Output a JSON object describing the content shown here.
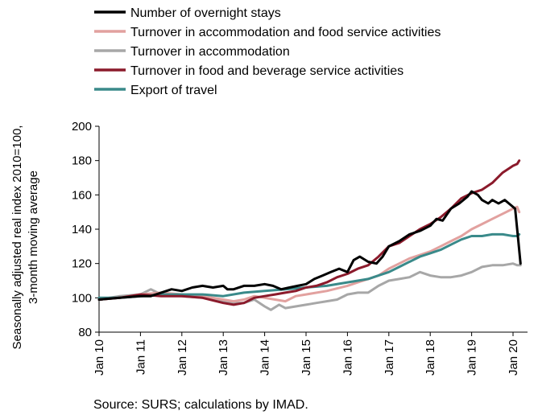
{
  "chart_data": {
    "type": "line",
    "title": "",
    "xlabel": "",
    "ylabel_lines": [
      "Seasonally adjusted real index 2010=100,",
      "3-month moving average"
    ],
    "ylim": [
      80,
      200
    ],
    "yticks": [
      80,
      100,
      120,
      140,
      160,
      180,
      200
    ],
    "grid": false,
    "legend_position": "top",
    "x_range": [
      2010,
      2020.35
    ],
    "x_ticks": [
      {
        "label": "Jan 10",
        "x": 2010
      },
      {
        "label": "Jan 11",
        "x": 2011
      },
      {
        "label": "Jan 12",
        "x": 2012
      },
      {
        "label": "Jan 13",
        "x": 2013
      },
      {
        "label": "Jan 14",
        "x": 2014
      },
      {
        "label": "Jan 15",
        "x": 2015
      },
      {
        "label": "Jan 16",
        "x": 2016
      },
      {
        "label": "Jan 17",
        "x": 2017
      },
      {
        "label": "Jan 18",
        "x": 2018
      },
      {
        "label": "Jan 19",
        "x": 2019
      },
      {
        "label": "Jan 20",
        "x": 2020
      }
    ],
    "series": [
      {
        "name": "Number of overnight stays",
        "color": "#000000",
        "points": [
          [
            2010,
            99
          ],
          [
            2010.5,
            100
          ],
          [
            2011,
            101
          ],
          [
            2011.25,
            101
          ],
          [
            2011.5,
            103
          ],
          [
            2011.75,
            105
          ],
          [
            2012,
            104
          ],
          [
            2012.25,
            106
          ],
          [
            2012.5,
            107
          ],
          [
            2012.75,
            106
          ],
          [
            2013,
            107
          ],
          [
            2013.1,
            105
          ],
          [
            2013.25,
            105
          ],
          [
            2013.5,
            107
          ],
          [
            2013.75,
            107
          ],
          [
            2014,
            108
          ],
          [
            2014.2,
            107
          ],
          [
            2014.4,
            105
          ],
          [
            2014.6,
            106
          ],
          [
            2014.8,
            107
          ],
          [
            2015,
            108
          ],
          [
            2015.2,
            111
          ],
          [
            2015.4,
            113
          ],
          [
            2015.6,
            115
          ],
          [
            2015.8,
            117
          ],
          [
            2016,
            115
          ],
          [
            2016.15,
            122
          ],
          [
            2016.3,
            124
          ],
          [
            2016.5,
            121
          ],
          [
            2016.7,
            120
          ],
          [
            2016.85,
            124
          ],
          [
            2017,
            130
          ],
          [
            2017.25,
            133
          ],
          [
            2017.5,
            137
          ],
          [
            2017.75,
            139
          ],
          [
            2018,
            142
          ],
          [
            2018.15,
            146
          ],
          [
            2018.3,
            145
          ],
          [
            2018.5,
            152
          ],
          [
            2018.7,
            155
          ],
          [
            2018.9,
            159
          ],
          [
            2019,
            162
          ],
          [
            2019.15,
            160
          ],
          [
            2019.25,
            157
          ],
          [
            2019.4,
            155
          ],
          [
            2019.5,
            157
          ],
          [
            2019.65,
            155
          ],
          [
            2019.8,
            157
          ],
          [
            2019.9,
            155
          ],
          [
            2020,
            153
          ],
          [
            2020.05,
            152
          ],
          [
            2020.12,
            135
          ],
          [
            2020.18,
            120
          ]
        ]
      },
      {
        "name": "Turnover in accommodation and food service activities",
        "color": "#e2a19f",
        "points": [
          [
            2010,
            99
          ],
          [
            2010.5,
            100
          ],
          [
            2011,
            102
          ],
          [
            2011.5,
            103
          ],
          [
            2012,
            102
          ],
          [
            2012.5,
            101
          ],
          [
            2013,
            99
          ],
          [
            2013.25,
            98
          ],
          [
            2013.5,
            99
          ],
          [
            2013.75,
            101
          ],
          [
            2014,
            100
          ],
          [
            2014.25,
            99
          ],
          [
            2014.5,
            98
          ],
          [
            2014.75,
            101
          ],
          [
            2015,
            102
          ],
          [
            2015.5,
            104
          ],
          [
            2016,
            107
          ],
          [
            2016.25,
            109
          ],
          [
            2016.5,
            111
          ],
          [
            2016.75,
            113
          ],
          [
            2017,
            117
          ],
          [
            2017.25,
            120
          ],
          [
            2017.5,
            123
          ],
          [
            2017.75,
            125
          ],
          [
            2018,
            127
          ],
          [
            2018.25,
            130
          ],
          [
            2018.5,
            133
          ],
          [
            2018.75,
            136
          ],
          [
            2019,
            140
          ],
          [
            2019.25,
            143
          ],
          [
            2019.5,
            146
          ],
          [
            2019.75,
            149
          ],
          [
            2020,
            152
          ],
          [
            2020.1,
            153
          ],
          [
            2020.15,
            150
          ]
        ]
      },
      {
        "name": "Turnover in accommodation",
        "color": "#a7a7a7",
        "points": [
          [
            2010,
            99
          ],
          [
            2010.5,
            101
          ],
          [
            2011,
            102
          ],
          [
            2011.25,
            105
          ],
          [
            2011.5,
            102
          ],
          [
            2012,
            101
          ],
          [
            2012.5,
            100
          ],
          [
            2013,
            98
          ],
          [
            2013.25,
            97
          ],
          [
            2013.5,
            97
          ],
          [
            2013.75,
            99
          ],
          [
            2014,
            95
          ],
          [
            2014.15,
            93
          ],
          [
            2014.35,
            96
          ],
          [
            2014.5,
            94
          ],
          [
            2014.75,
            95
          ],
          [
            2015,
            96
          ],
          [
            2015.25,
            97
          ],
          [
            2015.5,
            98
          ],
          [
            2015.75,
            99
          ],
          [
            2016,
            102
          ],
          [
            2016.25,
            103
          ],
          [
            2016.5,
            103
          ],
          [
            2016.75,
            107
          ],
          [
            2017,
            110
          ],
          [
            2017.25,
            111
          ],
          [
            2017.5,
            112
          ],
          [
            2017.75,
            115
          ],
          [
            2018,
            113
          ],
          [
            2018.25,
            112
          ],
          [
            2018.5,
            112
          ],
          [
            2018.75,
            113
          ],
          [
            2019,
            115
          ],
          [
            2019.25,
            118
          ],
          [
            2019.5,
            119
          ],
          [
            2019.75,
            119
          ],
          [
            2020,
            120
          ],
          [
            2020.1,
            119
          ],
          [
            2020.18,
            119
          ]
        ]
      },
      {
        "name": "Turnover in food and beverage service activities",
        "color": "#8b1a2b",
        "points": [
          [
            2010,
            99
          ],
          [
            2010.5,
            100
          ],
          [
            2011,
            102
          ],
          [
            2011.5,
            101
          ],
          [
            2012,
            101
          ],
          [
            2012.5,
            100
          ],
          [
            2013,
            97
          ],
          [
            2013.25,
            96
          ],
          [
            2013.5,
            97
          ],
          [
            2013.75,
            100
          ],
          [
            2014,
            101
          ],
          [
            2014.25,
            102
          ],
          [
            2014.5,
            103
          ],
          [
            2014.75,
            104
          ],
          [
            2015,
            106
          ],
          [
            2015.25,
            107
          ],
          [
            2015.5,
            109
          ],
          [
            2015.75,
            112
          ],
          [
            2016,
            114
          ],
          [
            2016.25,
            117
          ],
          [
            2016.5,
            119
          ],
          [
            2016.75,
            124
          ],
          [
            2017,
            130
          ],
          [
            2017.25,
            132
          ],
          [
            2017.5,
            136
          ],
          [
            2017.75,
            140
          ],
          [
            2018,
            143
          ],
          [
            2018.25,
            147
          ],
          [
            2018.5,
            152
          ],
          [
            2018.75,
            158
          ],
          [
            2019,
            161
          ],
          [
            2019.25,
            163
          ],
          [
            2019.5,
            167
          ],
          [
            2019.75,
            173
          ],
          [
            2020,
            177
          ],
          [
            2020.1,
            178
          ],
          [
            2020.15,
            180
          ]
        ]
      },
      {
        "name": "Export of travel",
        "color": "#3a8a8a",
        "points": [
          [
            2010,
            100
          ],
          [
            2010.5,
            100
          ],
          [
            2011,
            101
          ],
          [
            2011.5,
            102
          ],
          [
            2012,
            102
          ],
          [
            2012.5,
            102
          ],
          [
            2013,
            101
          ],
          [
            2013.5,
            103
          ],
          [
            2014,
            104
          ],
          [
            2014.5,
            105
          ],
          [
            2015,
            106
          ],
          [
            2015.5,
            107
          ],
          [
            2016,
            109
          ],
          [
            2016.25,
            110
          ],
          [
            2016.5,
            111
          ],
          [
            2016.75,
            113
          ],
          [
            2017,
            115
          ],
          [
            2017.25,
            118
          ],
          [
            2017.5,
            121
          ],
          [
            2017.75,
            124
          ],
          [
            2018,
            126
          ],
          [
            2018.25,
            128
          ],
          [
            2018.5,
            131
          ],
          [
            2018.75,
            134
          ],
          [
            2019,
            136
          ],
          [
            2019.25,
            136
          ],
          [
            2019.5,
            137
          ],
          [
            2019.75,
            137
          ],
          [
            2020,
            136
          ],
          [
            2020.1,
            136
          ],
          [
            2020.15,
            137
          ]
        ]
      }
    ]
  },
  "source_note": "Source: SURS; calculations by IMAD."
}
